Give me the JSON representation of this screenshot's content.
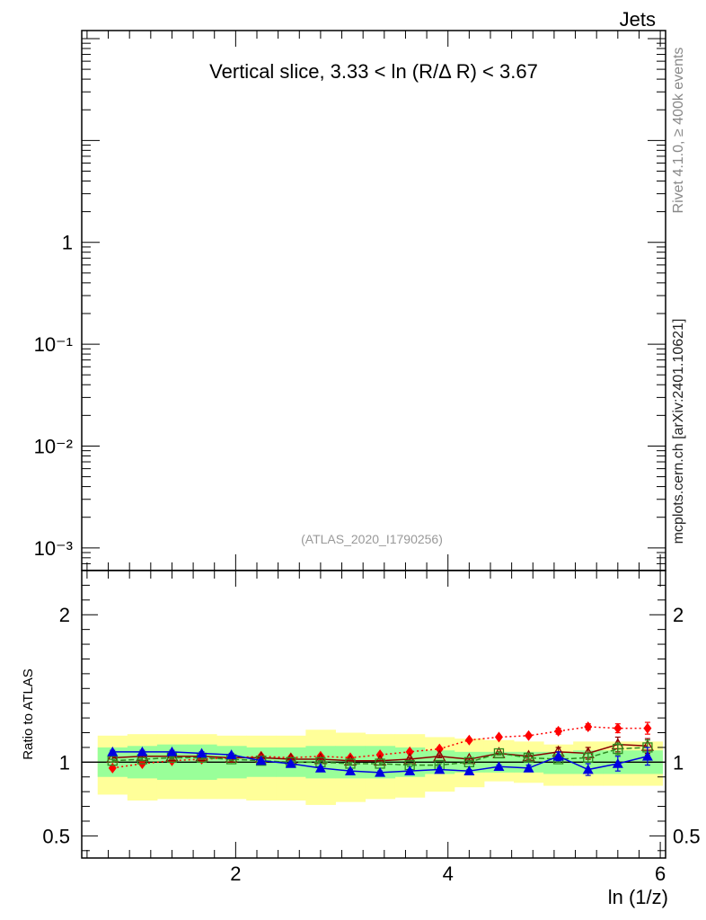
{
  "corner_label": "Jets",
  "chart_data": [
    {
      "panel": "main",
      "type": "line",
      "title": "Vertical slice, 3.33 < ln (R/Δ R) < 3.67",
      "xlabel": "ln (1/z)",
      "ylabel": "",
      "yscale": "log",
      "ylim": [
        0.0006,
        120
      ],
      "xlim": [
        0.55,
        6.05
      ],
      "ytick_labels": [
        {
          "value": 1,
          "label": "1"
        },
        {
          "value": 0.1,
          "label": "10⁻¹"
        },
        {
          "value": 0.01,
          "label": "10⁻²"
        },
        {
          "value": 0.001,
          "label": "10⁻³"
        }
      ],
      "series": [],
      "annotation": "(ATLAS_2020_I1790256)"
    },
    {
      "panel": "ratio",
      "type": "line",
      "ylabel": "Ratio to ATLAS",
      "xlabel": "ln (1/z)",
      "ylim": [
        0.35,
        2.3
      ],
      "xlim": [
        0.55,
        6.05
      ],
      "xtick_labels": [
        {
          "value": 2,
          "label": "2"
        },
        {
          "value": 4,
          "label": "4"
        },
        {
          "value": 6,
          "label": "6"
        }
      ],
      "ytick_labels": [
        {
          "value": 0.5,
          "label": "0.5"
        },
        {
          "value": 1,
          "label": "1"
        },
        {
          "value": 2,
          "label": "2"
        }
      ],
      "reference_line": 1,
      "bins": [
        0.7,
        0.98,
        1.26,
        1.54,
        1.82,
        2.1,
        2.38,
        2.66,
        2.94,
        3.22,
        3.5,
        3.78,
        4.06,
        4.34,
        4.62,
        4.9,
        5.18,
        5.46,
        5.74,
        6.02
      ],
      "band_green": {
        "lo": [
          0.9,
          0.89,
          0.88,
          0.88,
          0.89,
          0.9,
          0.9,
          0.89,
          0.89,
          0.89,
          0.9,
          0.92,
          0.93,
          0.93,
          0.93,
          0.92,
          0.92,
          0.92,
          0.92
        ],
        "hi": [
          1.1,
          1.11,
          1.12,
          1.12,
          1.11,
          1.1,
          1.1,
          1.11,
          1.11,
          1.11,
          1.1,
          1.08,
          1.07,
          1.07,
          1.07,
          1.07,
          1.08,
          1.08,
          1.08
        ]
      },
      "band_yellow": {
        "lo": [
          0.78,
          0.74,
          0.75,
          0.75,
          0.75,
          0.74,
          0.74,
          0.71,
          0.73,
          0.75,
          0.76,
          0.8,
          0.83,
          0.87,
          0.86,
          0.84,
          0.84,
          0.84,
          0.84
        ],
        "hi": [
          1.18,
          1.19,
          1.19,
          1.19,
          1.18,
          1.18,
          1.18,
          1.22,
          1.2,
          1.19,
          1.19,
          1.17,
          1.16,
          1.15,
          1.14,
          1.12,
          1.14,
          1.14,
          1.14
        ]
      },
      "x": [
        0.84,
        1.12,
        1.4,
        1.68,
        1.96,
        2.24,
        2.52,
        2.8,
        3.08,
        3.36,
        3.64,
        3.92,
        4.2,
        4.48,
        4.76,
        5.04,
        5.32,
        5.6,
        5.88
      ],
      "series": [
        {
          "name": "red diamonds (dotted)",
          "color": "#ff0000",
          "marker": "diamond",
          "dash": "2,3",
          "values": [
            0.96,
            0.99,
            1.01,
            1.02,
            1.03,
            1.04,
            1.03,
            1.04,
            1.03,
            1.05,
            1.07,
            1.09,
            1.15,
            1.17,
            1.18,
            1.21,
            1.24,
            1.23,
            1.23
          ],
          "err": [
            0.01,
            0.01,
            0.01,
            0.01,
            0.01,
            0.01,
            0.01,
            0.01,
            0.01,
            0.01,
            0.01,
            0.01,
            0.01,
            0.01,
            0.01,
            0.02,
            0.02,
            0.03,
            0.04
          ]
        },
        {
          "name": "maroon open triangles",
          "color": "#8b0000",
          "marker": "triangle-open",
          "dash": "",
          "values": [
            1.03,
            1.04,
            1.04,
            1.04,
            1.03,
            1.03,
            1.02,
            1.02,
            1.01,
            1.01,
            1.02,
            1.04,
            1.02,
            1.06,
            1.04,
            1.07,
            1.06,
            1.12,
            1.11
          ],
          "err": [
            0.01,
            0.01,
            0.01,
            0.01,
            0.01,
            0.01,
            0.01,
            0.01,
            0.01,
            0.01,
            0.01,
            0.01,
            0.01,
            0.01,
            0.02,
            0.03,
            0.04,
            0.05,
            0.05
          ]
        },
        {
          "name": "green open squares (dashed)",
          "color": "#2e8b22",
          "marker": "square-open",
          "dash": "6,3",
          "values": [
            1.01,
            1.02,
            1.03,
            1.03,
            1.02,
            1.01,
            1.0,
            1.0,
            0.99,
            0.99,
            0.98,
            0.98,
            1.0,
            1.06,
            1.03,
            1.02,
            1.03,
            1.09,
            1.1
          ],
          "err": [
            0.01,
            0.01,
            0.01,
            0.01,
            0.01,
            0.01,
            0.01,
            0.01,
            0.01,
            0.01,
            0.01,
            0.01,
            0.01,
            0.01,
            0.02,
            0.02,
            0.03,
            0.04,
            0.05
          ]
        },
        {
          "name": "blue triangles",
          "color": "#0000e0",
          "marker": "triangle",
          "dash": "",
          "values": [
            1.07,
            1.07,
            1.07,
            1.06,
            1.05,
            1.01,
            0.99,
            0.96,
            0.94,
            0.93,
            0.94,
            0.95,
            0.94,
            0.97,
            0.96,
            1.04,
            0.95,
            0.99,
            1.04
          ],
          "err": [
            0.01,
            0.01,
            0.01,
            0.01,
            0.01,
            0.01,
            0.01,
            0.01,
            0.01,
            0.01,
            0.01,
            0.01,
            0.01,
            0.01,
            0.02,
            0.03,
            0.04,
            0.05,
            0.06
          ]
        }
      ]
    }
  ],
  "side_text_1": "Rivet 4.1.0, ≥ 400k events",
  "side_text_2": "mcplots.cern.ch [arXiv:2401.10621]"
}
